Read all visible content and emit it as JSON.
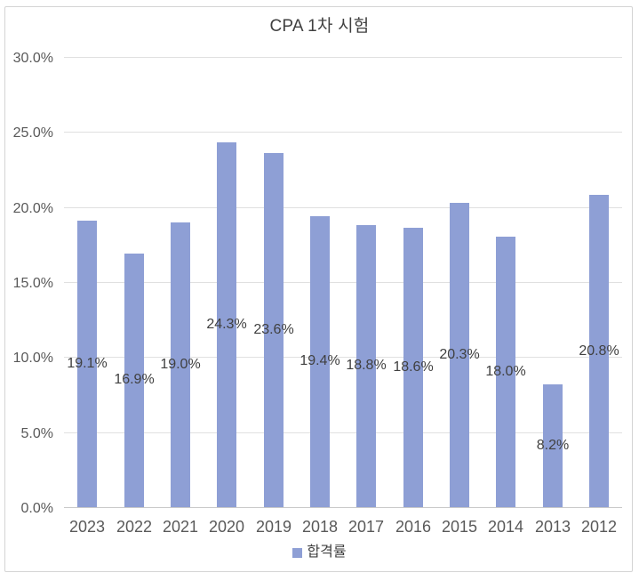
{
  "chart_data": {
    "type": "bar",
    "title": "CPA 1차 시험",
    "categories": [
      "2023",
      "2022",
      "2021",
      "2020",
      "2019",
      "2018",
      "2017",
      "2016",
      "2015",
      "2014",
      "2013",
      "2012"
    ],
    "series": [
      {
        "name": "합격률",
        "values": [
          19.1,
          16.9,
          19.0,
          24.3,
          23.6,
          19.4,
          18.8,
          18.6,
          20.3,
          18.0,
          8.2,
          20.8
        ],
        "data_labels": [
          "19.1%",
          "16.9%",
          "19.0%",
          "24.3%",
          "23.6%",
          "19.4%",
          "18.8%",
          "18.6%",
          "20.3%",
          "18.0%",
          "8.2%",
          "20.8%"
        ],
        "color": "#8e9fd5"
      }
    ],
    "y_ticks": [
      {
        "value": 0,
        "label": "0.0%"
      },
      {
        "value": 5,
        "label": "5.0%"
      },
      {
        "value": 10,
        "label": "10.0%"
      },
      {
        "value": 15,
        "label": "15.0%"
      },
      {
        "value": 20,
        "label": "20.0%"
      },
      {
        "value": 25,
        "label": "25.0%"
      },
      {
        "value": 30,
        "label": "30.0%"
      }
    ],
    "ylim": [
      0,
      30
    ],
    "grid": true,
    "legend_position": "bottom",
    "colors": {
      "bar": "#8e9fd5",
      "title_text": "#404040",
      "axis_text": "#595959",
      "data_label_text": "#404040",
      "gridline": "#e0e0e0",
      "frame_border": "#d4d4d4"
    }
  }
}
